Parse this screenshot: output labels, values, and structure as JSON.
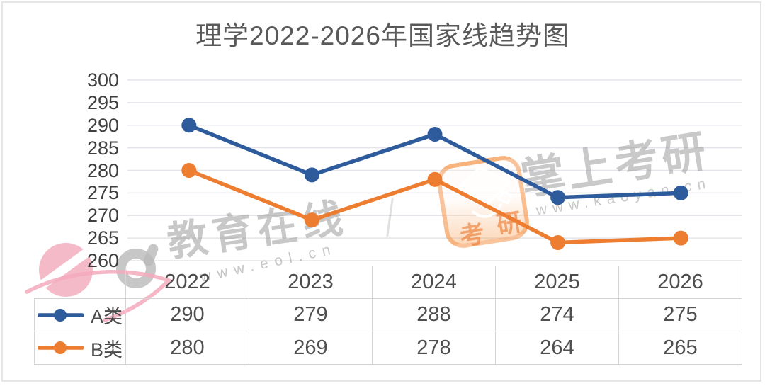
{
  "title": "理学2022-2026年国家线趋势图",
  "chart_data": {
    "type": "line",
    "title": "理学2022-2026年国家线趋势图",
    "categories": [
      "2022",
      "2023",
      "2024",
      "2025",
      "2026"
    ],
    "series": [
      {
        "name": "A类",
        "color": "#2E5B9C",
        "values": [
          290,
          279,
          288,
          274,
          275
        ]
      },
      {
        "name": "B类",
        "color": "#ED7D31",
        "values": [
          280,
          269,
          278,
          264,
          265
        ]
      }
    ],
    "ylim": [
      260,
      300
    ],
    "ytick_step": 5,
    "yticks": [
      300,
      295,
      290,
      285,
      280,
      275,
      270,
      265,
      260
    ],
    "grid": true,
    "marker": "circle",
    "legend_position": "data-table-left",
    "data_table_shown": true
  },
  "watermarks": {
    "eol": {
      "brand": "教育在线",
      "url": "www.eol.cn"
    },
    "kaoyan": {
      "brand": "掌上考研",
      "url": "www.kaoyan.cn",
      "stamp_char_1": "考",
      "stamp_char_2": "研"
    }
  },
  "colors": {
    "series_a": "#2E5B9C",
    "series_b": "#ED7D31",
    "grid_line": "#e4e4ea",
    "title_text": "#595959",
    "axis_text": "#3f3f3f",
    "table_border": "#d4d4d4",
    "watermark_gray": "#969696",
    "eol_pink": "#f4b3c2",
    "stamp_orange": "#ED7D31"
  }
}
